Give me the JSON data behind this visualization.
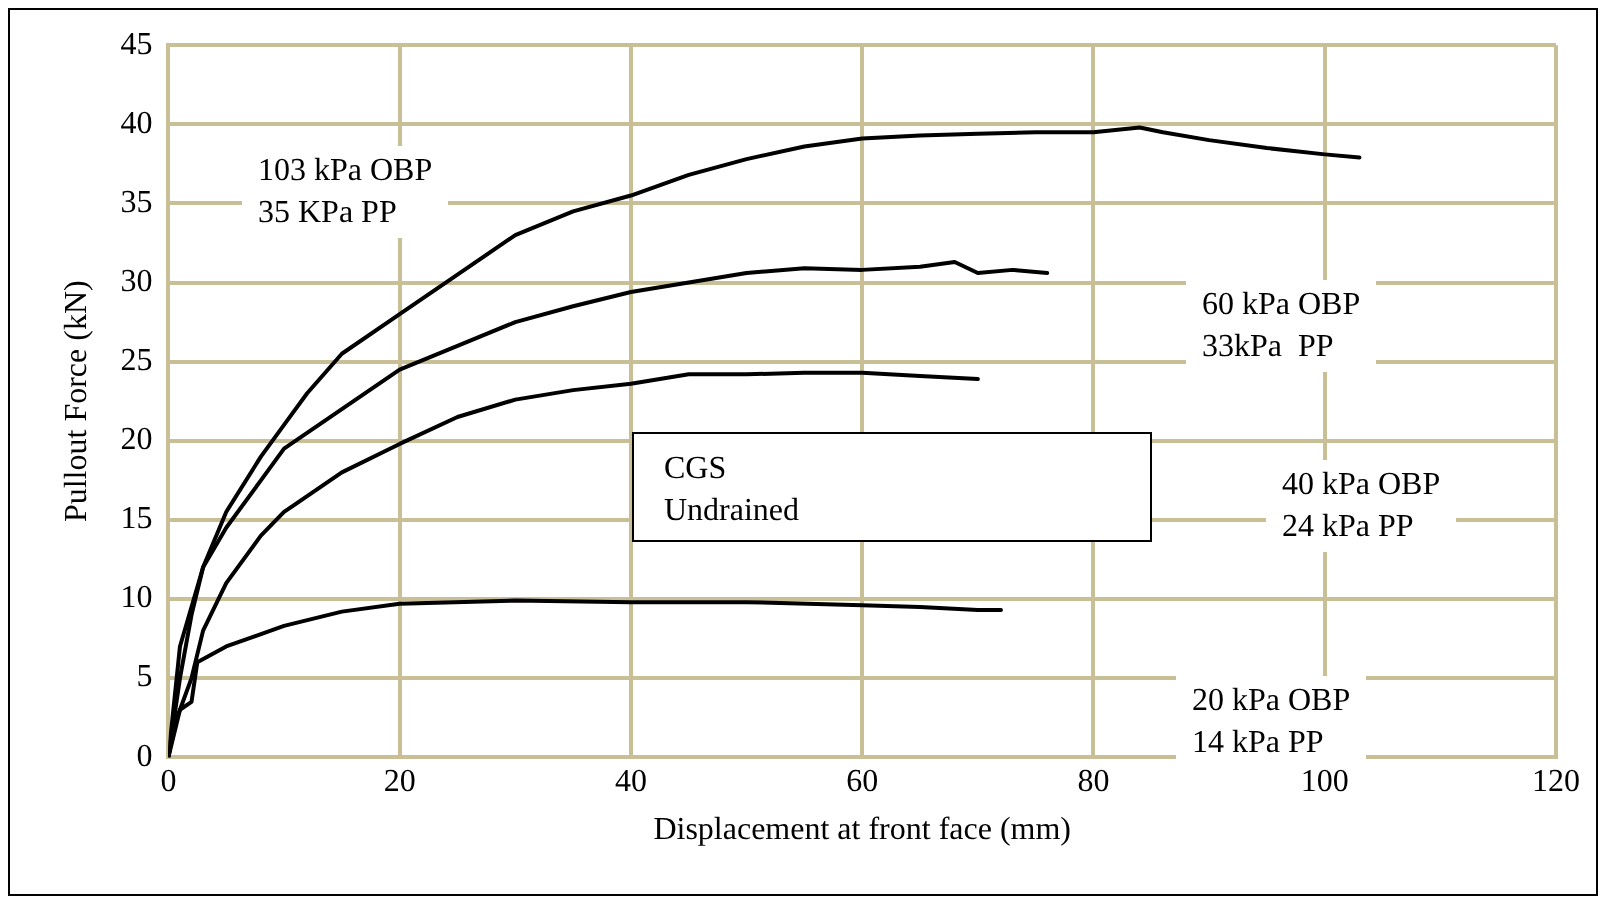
{
  "chart_data": {
    "type": "line",
    "xlabel": "Displacement at front face (mm)",
    "ylabel": "Pullout Force (kN)",
    "xlim": [
      0,
      120
    ],
    "xticks": [
      0,
      20,
      40,
      60,
      80,
      100,
      120
    ],
    "ylim": [
      0,
      45
    ],
    "yticks": [
      0,
      5,
      10,
      15,
      20,
      25,
      30,
      35,
      40,
      45
    ],
    "grid": true,
    "legend": false,
    "marker": "none",
    "line_style": "solid",
    "series": [
      {
        "color": "#000000",
        "x": [
          0,
          1,
          3,
          5,
          8,
          10,
          12,
          15,
          20,
          25,
          30,
          35,
          40,
          45,
          50,
          55,
          60,
          65,
          70,
          75,
          80,
          84,
          86,
          90,
          95,
          100,
          103
        ],
        "values": [
          0,
          7,
          12,
          15.5,
          19,
          21,
          23,
          25.5,
          28,
          30.5,
          33,
          34.5,
          35.5,
          36.8,
          37.8,
          38.6,
          39.1,
          39.3,
          39.4,
          39.5,
          39.5,
          39.8,
          39.5,
          39,
          38.5,
          38.1,
          37.9
        ]
      },
      {
        "color": "#000000",
        "x": [
          0,
          1,
          2,
          3,
          5,
          8,
          10,
          15,
          20,
          25,
          30,
          35,
          40,
          45,
          50,
          55,
          60,
          65,
          68,
          70,
          73,
          76
        ],
        "values": [
          0,
          5,
          9,
          12,
          14.5,
          17.5,
          19.5,
          22,
          24.5,
          26,
          27.5,
          28.5,
          29.4,
          30,
          30.6,
          30.9,
          30.8,
          31,
          31.3,
          30.6,
          30.8,
          30.6
        ]
      },
      {
        "color": "#000000",
        "x": [
          0,
          1,
          2,
          3,
          5,
          8,
          10,
          15,
          20,
          25,
          30,
          35,
          40,
          45,
          50,
          55,
          60,
          65,
          70
        ],
        "values": [
          0,
          3,
          5,
          8,
          11,
          14,
          15.5,
          18,
          19.8,
          21.5,
          22.6,
          23.2,
          23.6,
          24.2,
          24.2,
          24.3,
          24.3,
          24.1,
          23.9
        ]
      },
      {
        "color": "#000000",
        "x": [
          0,
          0.5,
          1,
          2,
          2.5,
          5,
          10,
          15,
          20,
          30,
          40,
          50,
          60,
          65,
          70,
          72
        ],
        "values": [
          0,
          2,
          3,
          3.5,
          6,
          7,
          8.3,
          9.2,
          9.7,
          9.9,
          9.8,
          9.8,
          9.6,
          9.5,
          9.3,
          9.3
        ]
      }
    ],
    "annotations": [
      "103 kPa OBP\n35 KPa PP",
      "60 kPa OBP\n33kPa  PP",
      "40 kPa OBP\n24 kPa PP",
      "20 kPa OBP\n14 kPa PP",
      "CGS\nUndrained"
    ]
  }
}
